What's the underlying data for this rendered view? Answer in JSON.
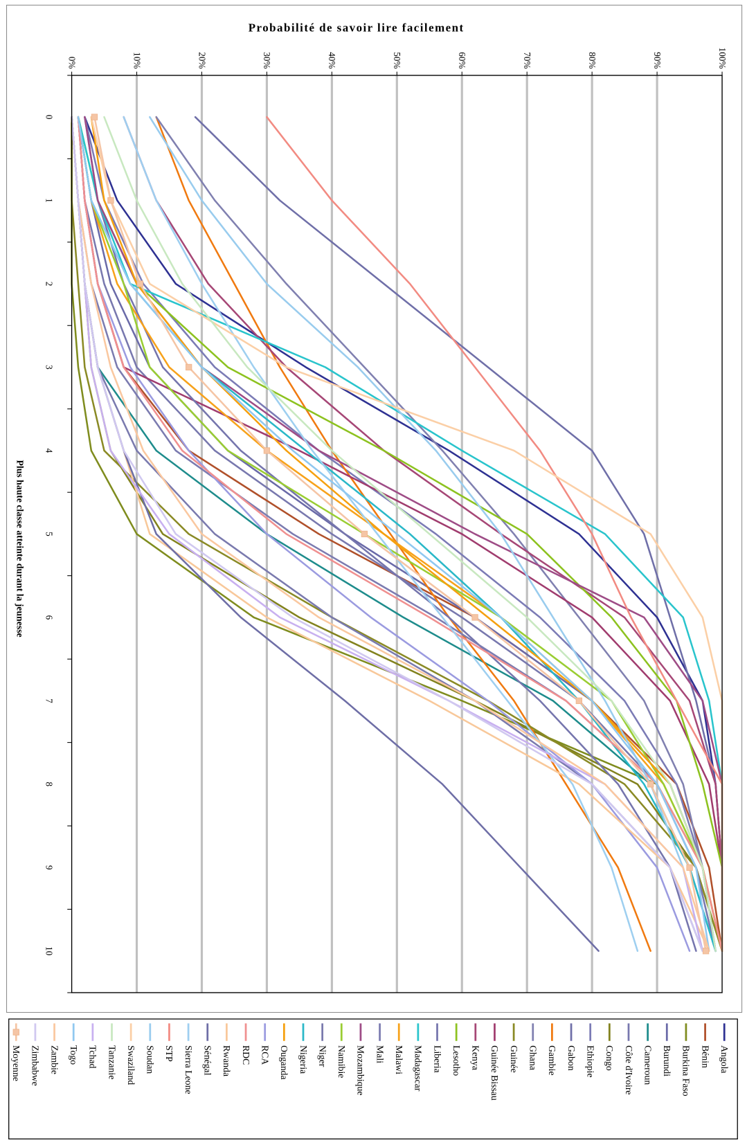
{
  "chart_data": {
    "type": "line",
    "orientation": "rotated-90-clockwise",
    "title": "",
    "ylabel": "Probabilité de savoir lire facilement",
    "xlabel": "Plus haute classe atteinte durant la jeunesse",
    "categories": [
      "0",
      "1",
      "2",
      "3",
      "4",
      "5",
      "6",
      "7",
      "8",
      "9",
      "10"
    ],
    "yticks": [
      "0%",
      "10%",
      "20%",
      "30%",
      "40%",
      "50%",
      "60%",
      "70%",
      "80%",
      "90%",
      "100%"
    ],
    "ylim": [
      0,
      100
    ],
    "y_unit": "percent",
    "grid": true,
    "legend_position": "bottom",
    "series": [
      {
        "name": "Angola",
        "color": "#2E3192",
        "values": [
          2,
          7,
          16,
          36,
          58,
          78,
          90,
          97,
          99,
          100,
          100
        ]
      },
      {
        "name": "Bénin",
        "color": "#B0502A",
        "values": [
          1,
          2,
          4,
          8,
          18,
          38,
          62,
          80,
          93,
          98,
          100
        ]
      },
      {
        "name": "Burkina Faso",
        "color": "#7F8C1E",
        "values": [
          0,
          0,
          0,
          1,
          3,
          10,
          28,
          60,
          90,
          97,
          100
        ]
      },
      {
        "name": "Burundi",
        "color": "#6A6AA8",
        "values": [
          1,
          3,
          6,
          12,
          24,
          42,
          62,
          80,
          92,
          97,
          100
        ]
      },
      {
        "name": "Cameroun",
        "color": "#1E8C8C",
        "values": [
          0,
          1,
          2,
          4,
          13,
          30,
          51,
          74,
          89,
          95,
          99
        ]
      },
      {
        "name": "Côte d'Ivoire",
        "color": "#7878AE",
        "values": [
          1,
          2,
          5,
          10,
          22,
          40,
          60,
          78,
          90,
          96,
          99
        ]
      },
      {
        "name": "Congo",
        "color": "#82821E",
        "values": [
          0,
          1,
          2,
          3,
          6,
          14,
          35,
          62,
          87,
          96,
          100
        ]
      },
      {
        "name": "Ethiopie",
        "color": "#7B7BB5",
        "values": [
          2,
          5,
          11,
          22,
          38,
          56,
          72,
          85,
          93,
          97,
          99
        ]
      },
      {
        "name": "Gabon",
        "color": "#6F6FA8",
        "values": [
          19,
          32,
          48,
          64,
          80,
          88,
          92,
          96,
          99,
          100,
          100
        ]
      },
      {
        "name": "Gambie",
        "color": "#F07A10",
        "values": [
          13,
          18,
          25,
          32,
          40,
          49,
          58,
          68,
          76,
          84,
          89
        ]
      },
      {
        "name": "Ghana",
        "color": "#8080B0",
        "values": [
          13,
          22,
          33,
          45,
          57,
          68,
          78,
          88,
          94,
          97,
          99
        ]
      },
      {
        "name": "Guinée",
        "color": "#8A8A25",
        "values": [
          0,
          0,
          1,
          2,
          5,
          18,
          40,
          64,
          85,
          96,
          100
        ]
      },
      {
        "name": "Guinée Bissau",
        "color": "#A03C6E",
        "values": [
          1,
          2,
          4,
          8,
          35,
          60,
          80,
          92,
          98,
          100,
          100
        ]
      },
      {
        "name": "Kenya",
        "color": "#A64776",
        "values": [
          8,
          13,
          21,
          33,
          48,
          66,
          85,
          95,
          99,
          100,
          100
        ]
      },
      {
        "name": "Lesotho",
        "color": "#8DC21F",
        "values": [
          1,
          4,
          10,
          24,
          48,
          70,
          83,
          93,
          97,
          100,
          100
        ]
      },
      {
        "name": "Liberia",
        "color": "#7575AD",
        "values": [
          2,
          4,
          8,
          14,
          26,
          42,
          58,
          72,
          84,
          92,
          96
        ]
      },
      {
        "name": "Madagascar",
        "color": "#29C4CC",
        "values": [
          1,
          4,
          9,
          39,
          60,
          82,
          94,
          98,
          100,
          100,
          100
        ]
      },
      {
        "name": "Malawi",
        "color": "#F7A21B",
        "values": [
          1,
          3,
          7,
          15,
          30,
          48,
          66,
          80,
          91,
          97,
          100
        ]
      },
      {
        "name": "Mali",
        "color": "#7B7BB0",
        "values": [
          0,
          1,
          3,
          7,
          16,
          34,
          56,
          76,
          90,
          96,
          99
        ]
      },
      {
        "name": "Mozambique",
        "color": "#9E4C86",
        "values": [
          2,
          4,
          10,
          20,
          38,
          62,
          88,
          97,
          100,
          100,
          100
        ]
      },
      {
        "name": "Namibie",
        "color": "#9ACD32",
        "values": [
          1,
          3,
          8,
          12,
          24,
          45,
          66,
          83,
          91,
          97,
          100
        ]
      },
      {
        "name": "Niger",
        "color": "#7A7AAE",
        "values": [
          0,
          1,
          2,
          4,
          10,
          22,
          40,
          62,
          80,
          92,
          97
        ]
      },
      {
        "name": "Nigeria",
        "color": "#2AB8C8",
        "values": [
          1,
          3,
          9,
          20,
          36,
          52,
          66,
          78,
          88,
          95,
          99
        ]
      },
      {
        "name": "Ouganda",
        "color": "#F5A00F",
        "values": [
          3,
          5,
          10,
          20,
          33,
          48,
          64,
          80,
          92,
          97,
          100
        ]
      },
      {
        "name": "RCA",
        "color": "#9B9BE0",
        "values": [
          1,
          2,
          4,
          9,
          18,
          30,
          46,
          64,
          80,
          90,
          95
        ]
      },
      {
        "name": "RDC",
        "color": "#F09090",
        "values": [
          1,
          2,
          4,
          8,
          17,
          33,
          55,
          76,
          90,
          97,
          100
        ]
      },
      {
        "name": "Rwanda",
        "color": "#F8C89A",
        "values": [
          0,
          1,
          2,
          4,
          8,
          12,
          30,
          55,
          78,
          92,
          98
        ]
      },
      {
        "name": "Sénégal",
        "color": "#6E6EA6",
        "values": [
          0,
          1,
          2,
          4,
          8,
          13,
          26,
          42,
          57,
          69,
          81
        ]
      },
      {
        "name": "Sierra Leone",
        "color": "#9ECFF0",
        "values": [
          8,
          13,
          20,
          28,
          37,
          47,
          57,
          67,
          77,
          83,
          87
        ]
      },
      {
        "name": "STP",
        "color": "#F28B82",
        "values": [
          30,
          40,
          52,
          62,
          72,
          80,
          86,
          93,
          100,
          100,
          100
        ]
      },
      {
        "name": "Soudan",
        "color": "#99CCEE",
        "values": [
          12,
          20,
          30,
          44,
          56,
          66,
          74,
          82,
          89,
          94,
          97
        ]
      },
      {
        "name": "Swaziland",
        "color": "#FBCFA6",
        "values": [
          3,
          6,
          12,
          33,
          68,
          89,
          97,
          100,
          100,
          100,
          100
        ]
      },
      {
        "name": "Tanzanie",
        "color": "#C8E8C0",
        "values": [
          5,
          10,
          17,
          27,
          40,
          55,
          70,
          83,
          92,
          97,
          99
        ]
      },
      {
        "name": "Tchad",
        "color": "#C8B0F0",
        "values": [
          0,
          1,
          2,
          3,
          6,
          15,
          32,
          58,
          82,
          94,
          97
        ]
      },
      {
        "name": "Togo",
        "color": "#90C8F0",
        "values": [
          1,
          3,
          9,
          20,
          34,
          50,
          66,
          80,
          90,
          96,
          98
        ]
      },
      {
        "name": "Zambie",
        "color": "#FAC8A0",
        "values": [
          0,
          1,
          3,
          6,
          11,
          20,
          38,
          62,
          82,
          94,
          98
        ]
      },
      {
        "name": "Zimbabwe",
        "color": "#D0C8F0",
        "values": [
          0,
          1,
          2,
          4,
          8,
          16,
          34,
          58,
          80,
          92,
          97
        ]
      },
      {
        "name": "Moyenne",
        "color": "#F5C5A5",
        "marker": "square",
        "values": [
          3.5,
          6,
          10.5,
          18,
          30,
          45,
          62,
          78,
          89,
          95,
          97.5
        ]
      }
    ]
  }
}
